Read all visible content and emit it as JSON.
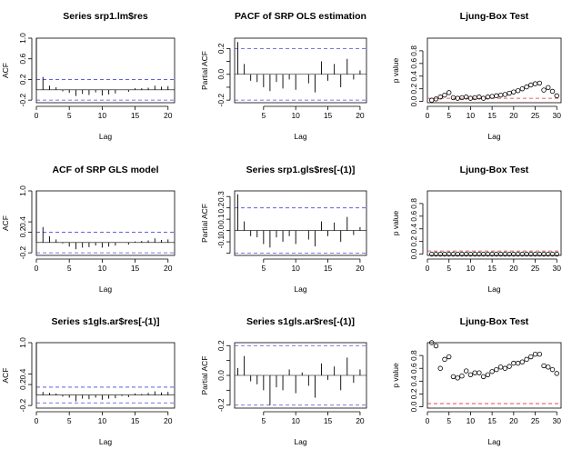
{
  "chart_data": [
    {
      "type": "acf",
      "title": "Series  srp1.lm$res",
      "xlabel": "Lag",
      "ylabel": "ACF",
      "xlim": [
        0,
        21
      ],
      "ylim": [
        -0.25,
        1.0
      ],
      "xticks": [
        0,
        5,
        10,
        15,
        20
      ],
      "yticks": [
        -0.2,
        0.2,
        0.6,
        1.0
      ],
      "ytick_labels": [
        "-0.2",
        "0.2",
        "0.6",
        "1.0"
      ],
      "conf_band": 0.2,
      "lags": [
        0,
        1,
        2,
        3,
        4,
        5,
        6,
        7,
        8,
        9,
        10,
        11,
        12,
        13,
        14,
        15,
        16,
        17,
        18,
        19,
        20
      ],
      "values": [
        1.0,
        0.25,
        0.08,
        0.05,
        -0.03,
        -0.06,
        -0.12,
        -0.08,
        -0.1,
        -0.05,
        -0.11,
        -0.09,
        -0.07,
        0.0,
        -0.04,
        0.03,
        0.03,
        0.04,
        0.08,
        0.06,
        0.07
      ]
    },
    {
      "type": "pacf",
      "title": "PACF of SRP OLS estimation",
      "xlabel": "Lag",
      "ylabel": "Partial ACF",
      "xlim": [
        0.5,
        21
      ],
      "ylim": [
        -0.22,
        0.28
      ],
      "xticks": [
        5,
        10,
        15,
        20
      ],
      "yticks": [
        -0.2,
        -0.1,
        0.0,
        0.1,
        0.2
      ],
      "ytick_labels": [
        "-0.2",
        "",
        "0.0",
        "",
        "0.2"
      ],
      "conf_band": 0.2,
      "lags": [
        1,
        2,
        3,
        4,
        5,
        6,
        7,
        8,
        9,
        10,
        11,
        12,
        13,
        14,
        15,
        16,
        17,
        18,
        19,
        20
      ],
      "values": [
        0.25,
        0.08,
        -0.05,
        -0.06,
        -0.1,
        -0.13,
        -0.06,
        -0.11,
        -0.04,
        -0.12,
        0.0,
        -0.07,
        -0.14,
        0.1,
        -0.05,
        0.08,
        -0.1,
        0.12,
        -0.04,
        0.03
      ]
    },
    {
      "type": "scatter",
      "title": "Ljung-Box Test",
      "xlabel": "Lag",
      "ylabel": "p value",
      "xlim": [
        0,
        31
      ],
      "ylim": [
        -0.02,
        1.0
      ],
      "xticks": [
        0,
        5,
        10,
        15,
        20,
        25,
        30
      ],
      "yticks": [
        0.0,
        0.2,
        0.4,
        0.6,
        0.8
      ],
      "ytick_labels": [
        "0.0",
        "0.2",
        "0.4",
        "0.6",
        "0.8"
      ],
      "ref_line": 0.05,
      "x": [
        1,
        2,
        3,
        4,
        5,
        6,
        7,
        8,
        9,
        10,
        11,
        12,
        13,
        14,
        15,
        16,
        17,
        18,
        19,
        20,
        21,
        22,
        23,
        24,
        25,
        26,
        27,
        28,
        29,
        30
      ],
      "y": [
        0.02,
        0.04,
        0.07,
        0.1,
        0.14,
        0.06,
        0.05,
        0.06,
        0.07,
        0.05,
        0.06,
        0.07,
        0.05,
        0.07,
        0.08,
        0.09,
        0.1,
        0.11,
        0.13,
        0.15,
        0.17,
        0.2,
        0.23,
        0.26,
        0.28,
        0.29,
        0.18,
        0.22,
        0.16,
        0.09
      ]
    },
    {
      "type": "acf",
      "title": "ACF of SRP GLS model",
      "xlabel": "Lag",
      "ylabel": "ACF",
      "xlim": [
        0,
        21
      ],
      "ylim": [
        -0.25,
        1.0
      ],
      "xticks": [
        0,
        5,
        10,
        15,
        20
      ],
      "yticks": [
        -0.2,
        0.2,
        0.4,
        1.0
      ],
      "ytick_labels": [
        "-0.2",
        "0.2",
        "0.4",
        "1.0"
      ],
      "conf_band": 0.2,
      "lags": [
        0,
        1,
        2,
        3,
        4,
        5,
        6,
        7,
        8,
        9,
        10,
        11,
        12,
        13,
        14,
        15,
        16,
        17,
        18,
        19,
        20
      ],
      "values": [
        1.0,
        0.3,
        0.12,
        0.06,
        -0.02,
        -0.08,
        -0.13,
        -0.1,
        -0.09,
        -0.06,
        -0.1,
        -0.08,
        -0.06,
        0.0,
        -0.04,
        0.02,
        0.03,
        0.04,
        0.08,
        0.05,
        0.06
      ]
    },
    {
      "type": "pacf",
      "title": "Series  srp1.gls$res[-(1)]",
      "xlabel": "Lag",
      "ylabel": "Partial ACF",
      "xlim": [
        0.5,
        21
      ],
      "ylim": [
        -0.22,
        0.35
      ],
      "xticks": [
        5,
        10,
        15,
        20
      ],
      "yticks": [
        -0.2,
        -0.1,
        0.0,
        0.1,
        0.2,
        0.3
      ],
      "ytick_labels": [
        "",
        "-0.1",
        "0.0",
        "0.1",
        "0.2",
        "0.3"
      ],
      "conf_band": 0.2,
      "lags": [
        1,
        2,
        3,
        4,
        5,
        6,
        7,
        8,
        9,
        10,
        11,
        12,
        13,
        14,
        15,
        16,
        17,
        18,
        19,
        20
      ],
      "values": [
        0.32,
        0.08,
        -0.05,
        -0.06,
        -0.12,
        -0.15,
        -0.06,
        -0.1,
        -0.05,
        -0.12,
        0.0,
        -0.08,
        -0.14,
        0.08,
        -0.05,
        0.07,
        -0.1,
        0.12,
        -0.04,
        0.03
      ]
    },
    {
      "type": "scatter",
      "title": "Ljung-Box Test",
      "xlabel": "Lag",
      "ylabel": "p value",
      "xlim": [
        0,
        31
      ],
      "ylim": [
        -0.02,
        1.0
      ],
      "xticks": [
        0,
        5,
        10,
        15,
        20,
        25,
        30
      ],
      "yticks": [
        0.0,
        0.2,
        0.4,
        0.6,
        0.8
      ],
      "ytick_labels": [
        "0.0",
        "0.2",
        "0.4",
        "0.6",
        "0.8"
      ],
      "ref_line": 0.05,
      "x": [
        1,
        2,
        3,
        4,
        5,
        6,
        7,
        8,
        9,
        10,
        11,
        12,
        13,
        14,
        15,
        16,
        17,
        18,
        19,
        20,
        21,
        22,
        23,
        24,
        25,
        26,
        27,
        28,
        29,
        30
      ],
      "y": [
        0,
        0,
        0,
        0,
        0,
        0,
        0,
        0,
        0,
        0,
        0,
        0,
        0,
        0,
        0,
        0,
        0,
        0,
        0,
        0,
        0,
        0,
        0,
        0,
        0,
        0,
        0,
        0,
        0,
        0
      ]
    },
    {
      "type": "acf",
      "title": "Series  s1gls.ar$res[-(1)]",
      "xlabel": "Lag",
      "ylabel": "ACF",
      "xlim": [
        0,
        21
      ],
      "ylim": [
        -0.25,
        1.0
      ],
      "xticks": [
        0,
        5,
        10,
        15,
        20
      ],
      "yticks": [
        -0.2,
        0.2,
        0.4,
        1.0
      ],
      "ytick_labels": [
        "-0.2",
        "0.2",
        "0.4",
        "1.0"
      ],
      "conf_band": 0.15,
      "lags": [
        0,
        1,
        2,
        3,
        4,
        5,
        6,
        7,
        8,
        9,
        10,
        11,
        12,
        13,
        14,
        15,
        16,
        17,
        18,
        19,
        20
      ],
      "values": [
        1.0,
        0.06,
        0.04,
        0.03,
        -0.03,
        -0.05,
        -0.12,
        -0.07,
        -0.08,
        -0.05,
        -0.09,
        -0.07,
        -0.06,
        -0.02,
        -0.04,
        0.03,
        0.02,
        0.04,
        0.07,
        0.05,
        0.06
      ]
    },
    {
      "type": "pacf",
      "title": "Series  s1gls.ar$res[-(1)]",
      "xlabel": "Lag",
      "ylabel": "Partial ACF",
      "xlim": [
        0.5,
        21
      ],
      "ylim": [
        -0.22,
        0.22
      ],
      "xticks": [
        5,
        10,
        15,
        20
      ],
      "yticks": [
        -0.2,
        -0.1,
        0.0,
        0.1,
        0.2
      ],
      "ytick_labels": [
        "-0.2",
        "",
        "0.0",
        "",
        "0.2"
      ],
      "conf_band": 0.2,
      "lags": [
        1,
        2,
        3,
        4,
        5,
        6,
        7,
        8,
        9,
        10,
        11,
        12,
        13,
        14,
        15,
        16,
        17,
        18,
        19,
        20
      ],
      "values": [
        0.05,
        0.13,
        -0.04,
        -0.06,
        -0.1,
        -0.2,
        -0.08,
        -0.1,
        0.04,
        -0.12,
        0.02,
        -0.07,
        -0.15,
        0.08,
        -0.03,
        0.06,
        -0.1,
        0.12,
        -0.05,
        0.04
      ]
    },
    {
      "type": "scatter",
      "title": "Ljung-Box Test",
      "xlabel": "Lag",
      "ylabel": "p value",
      "xlim": [
        0,
        31
      ],
      "ylim": [
        -0.02,
        1.0
      ],
      "xticks": [
        0,
        5,
        10,
        15,
        20,
        25,
        30
      ],
      "yticks": [
        0.0,
        0.2,
        0.4,
        0.6,
        0.8
      ],
      "ytick_labels": [
        "0.0",
        "0.2",
        "0.4",
        "0.6",
        "0.8"
      ],
      "ref_line": 0.05,
      "x": [
        1,
        2,
        3,
        4,
        5,
        6,
        7,
        8,
        9,
        10,
        11,
        12,
        13,
        14,
        15,
        16,
        17,
        18,
        19,
        20,
        21,
        22,
        23,
        24,
        25,
        26,
        27,
        28,
        29,
        30
      ],
      "y": [
        1.0,
        0.95,
        0.6,
        0.74,
        0.78,
        0.47,
        0.45,
        0.48,
        0.56,
        0.5,
        0.53,
        0.53,
        0.47,
        0.5,
        0.55,
        0.58,
        0.62,
        0.6,
        0.63,
        0.68,
        0.68,
        0.7,
        0.74,
        0.78,
        0.82,
        0.82,
        0.64,
        0.62,
        0.58,
        0.52
      ]
    }
  ]
}
